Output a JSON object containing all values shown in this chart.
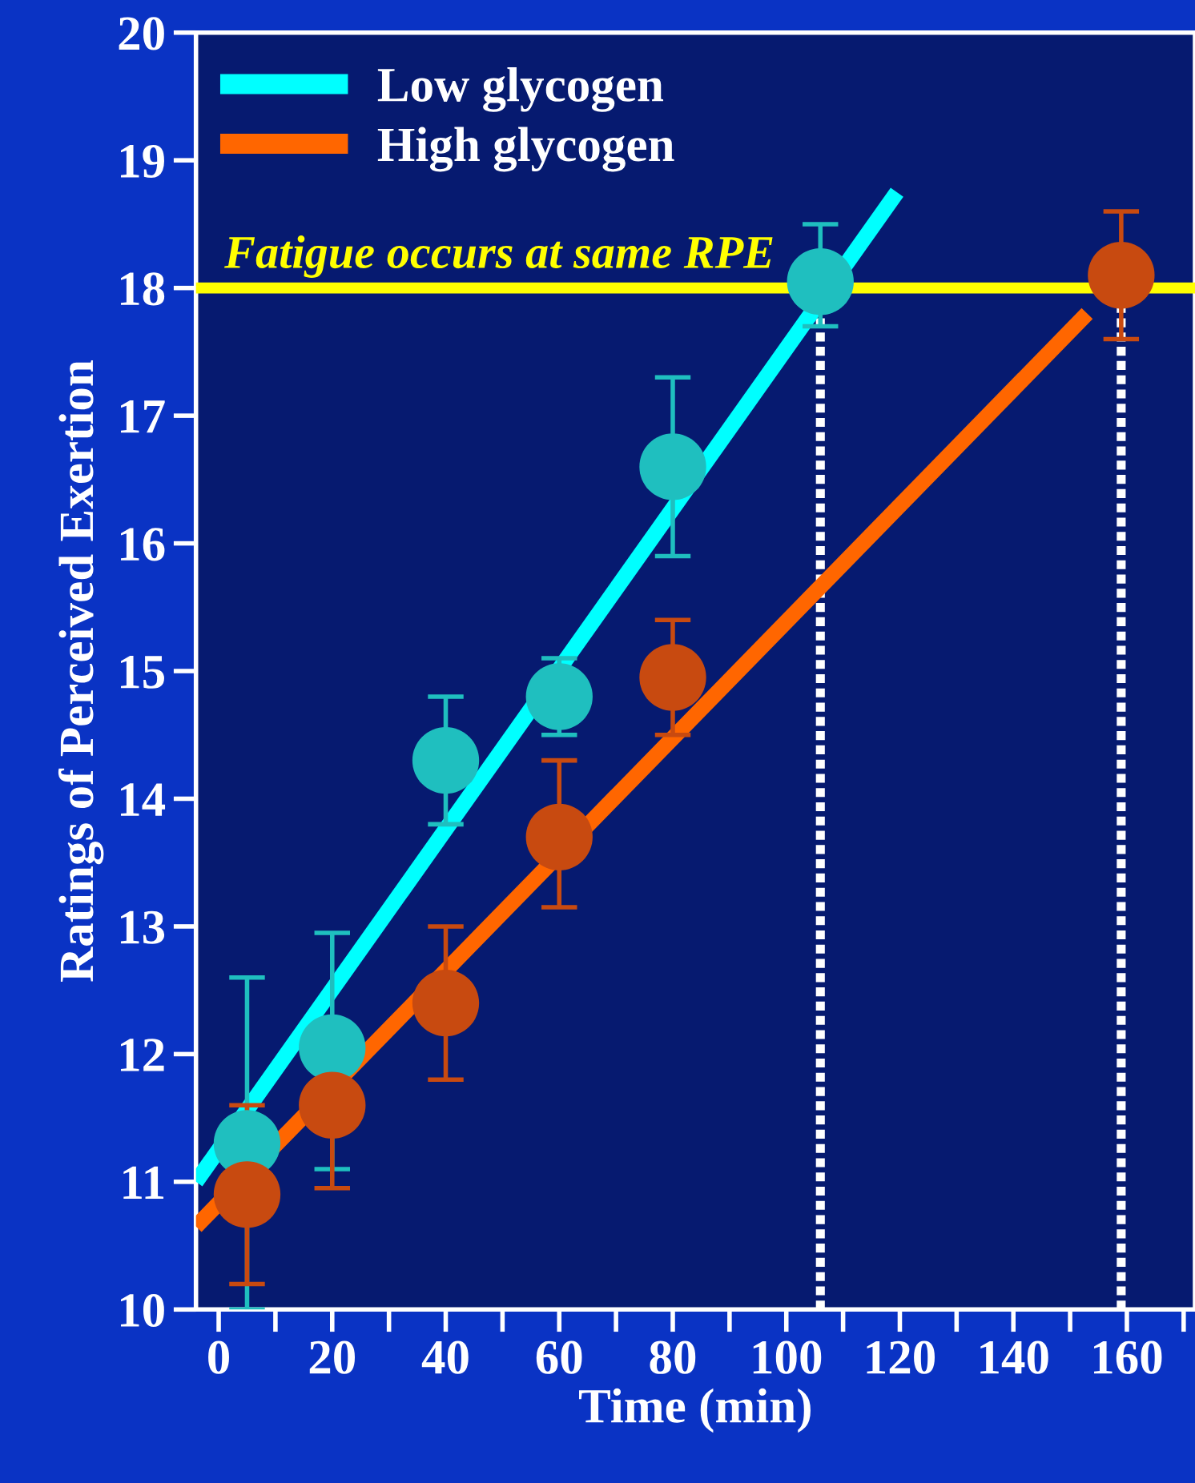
{
  "chart_data": {
    "type": "scatter",
    "xlabel": "Time (min)",
    "ylabel": "Ratings of Perceived Exertion",
    "xlim": [
      -4,
      172
    ],
    "ylim": [
      10,
      20
    ],
    "xticks": [
      0,
      {
        "value": 10,
        "label": null
      },
      20,
      {
        "value": 30,
        "label": null
      },
      40,
      {
        "value": 50,
        "label": null
      },
      60,
      {
        "value": 70,
        "label": null
      },
      80,
      {
        "value": 90,
        "label": null
      },
      100,
      {
        "value": 110,
        "label": null
      },
      120,
      {
        "value": 130,
        "label": null
      },
      140,
      {
        "value": 150,
        "label": null
      },
      160,
      {
        "value": 170,
        "label": null
      }
    ],
    "yticks": [
      10,
      11,
      12,
      13,
      14,
      15,
      16,
      17,
      18,
      19,
      20
    ],
    "grid": false,
    "legend": "top left",
    "marker": "circle",
    "series": [
      {
        "type": "line",
        "name": "Low glycogen",
        "color": "#00ffff",
        "x": [
          -4,
          119.5
        ],
        "values": [
          11.0,
          18.75
        ],
        "marker": "none"
      },
      {
        "type": "line",
        "name": "High glycogen",
        "color": "#ff6600",
        "x": [
          -4,
          153
        ],
        "values": [
          10.65,
          17.8
        ],
        "marker": "none"
      },
      {
        "color": "#1fbfbf",
        "x": [
          5,
          20,
          40,
          60,
          80,
          106
        ],
        "values": [
          11.3,
          12.05,
          14.3,
          14.8,
          16.6,
          18.05
        ],
        "errors": [
          [
            10.0,
            12.6
          ],
          [
            11.1,
            12.95
          ],
          [
            13.8,
            14.8
          ],
          [
            14.5,
            15.1
          ],
          [
            15.9,
            17.3
          ],
          [
            17.7,
            18.5
          ]
        ]
      },
      {
        "color": "#c84a10",
        "x": [
          5,
          20,
          40,
          60,
          80,
          159
        ],
        "values": [
          10.9,
          11.6,
          12.4,
          13.7,
          14.95,
          18.1
        ],
        "errors": [
          [
            10.2,
            11.6
          ],
          [
            10.95,
            11.6
          ],
          [
            11.8,
            13.0
          ],
          [
            13.15,
            14.3
          ],
          [
            14.5,
            15.4
          ],
          [
            17.6,
            18.6
          ]
        ]
      }
    ],
    "ref_lines": [
      {
        "axis": "y",
        "value": 18,
        "label": "Fatigue occurs at same RPE",
        "color": "#ffff00",
        "line_style": "solid"
      },
      {
        "axis": "x",
        "value": 106,
        "label": null,
        "color": "#ffffff",
        "line_style": "dotted"
      },
      {
        "axis": "x",
        "value": 159,
        "label": null,
        "color": "#ffffff",
        "line_style": "dotted"
      }
    ]
  }
}
